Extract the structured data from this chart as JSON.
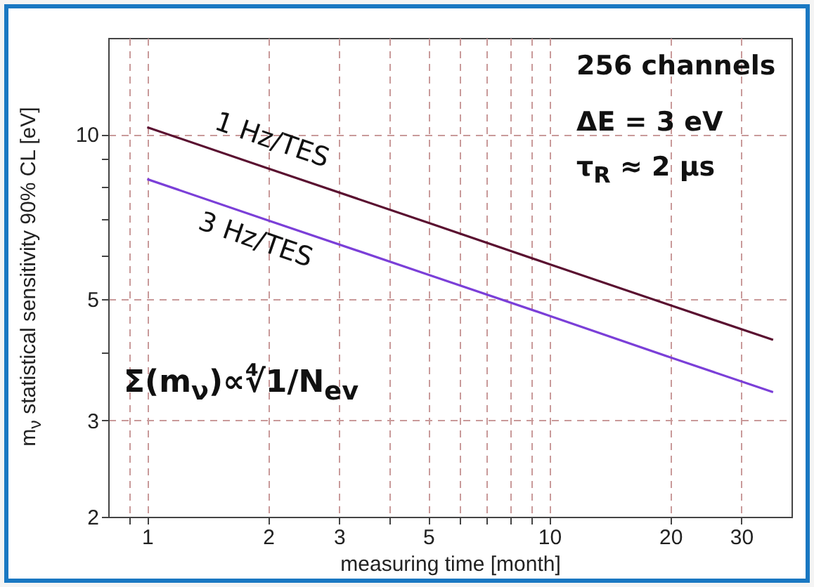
{
  "chart_data": {
    "type": "line",
    "xlabel": "measuring time [month]",
    "ylabel": "m$_{ν}$ statistical sensitivity 90% CL [eV]",
    "log": "xy",
    "grid": true,
    "legend": false,
    "line_style": "solid",
    "marker": "none",
    "xlim": [
      0.8,
      40
    ],
    "xticks": [
      {
        "value": 0.9,
        "label": null
      },
      1,
      2,
      3,
      {
        "value": 4,
        "label": null
      },
      5,
      {
        "value": 6,
        "label": null
      },
      {
        "value": 7,
        "label": null
      },
      {
        "value": 8,
        "label": null
      },
      {
        "value": 9,
        "label": null
      },
      10,
      20,
      30
    ],
    "ylim": [
      2,
      15
    ],
    "yticks": [
      2,
      3,
      {
        "value": 4,
        "label": null
      },
      5,
      {
        "value": 6,
        "label": null
      },
      {
        "value": 7,
        "label": null
      },
      {
        "value": 8,
        "label": null
      },
      {
        "value": 9,
        "label": null
      },
      10
    ],
    "x": [
      1,
      2,
      5,
      10,
      20,
      36
    ],
    "series": [
      {
        "name": "1 Hz/TES",
        "color": "#5a1030",
        "values": [
          10.3,
          8.66,
          6.89,
          5.79,
          4.87,
          4.21
        ]
      },
      {
        "name": "3 Hz/TES",
        "color": "#7b3fd8",
        "values": [
          8.28,
          6.96,
          5.54,
          4.66,
          3.91,
          3.38
        ]
      }
    ],
    "annotations": [
      "256 channels",
      "ΔE = 3 eV",
      "τ$_{R}$ ≈ 2 µs",
      "Σ(m$_{ν}$)∝∜1/N$_{ev}$"
    ]
  }
}
